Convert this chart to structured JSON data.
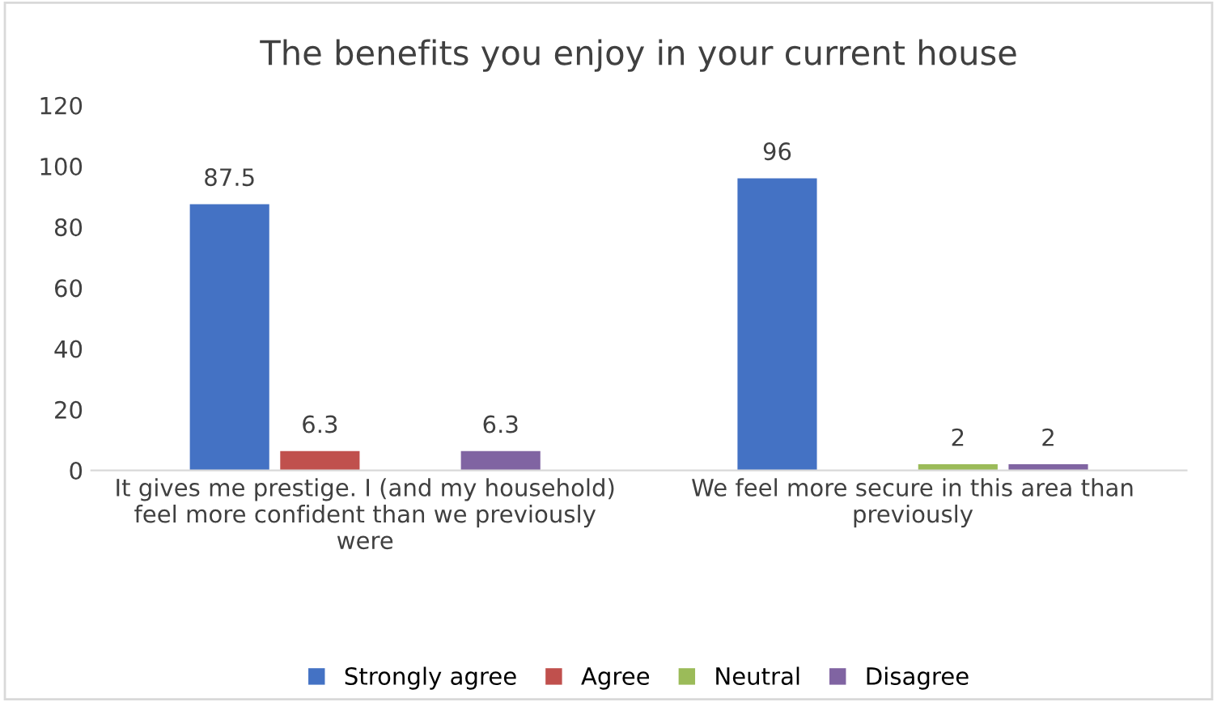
{
  "chart_data": {
    "type": "bar",
    "title": "The benefits you enjoy in your current house",
    "categories": [
      "It gives me prestige. I (and my household) feel more confident than we previously were",
      "We feel more secure in this area than previously"
    ],
    "series": [
      {
        "name": "Strongly agree",
        "color": "#4472c4",
        "values": [
          87.5,
          96
        ],
        "value_labels": [
          "87.5",
          "96"
        ]
      },
      {
        "name": "Agree",
        "color": "#c0504d",
        "values": [
          6.3,
          null
        ],
        "value_labels": [
          "6.3",
          null
        ]
      },
      {
        "name": "Neutral",
        "color": "#9bbb59",
        "values": [
          null,
          2
        ],
        "value_labels": [
          null,
          "2"
        ]
      },
      {
        "name": "Disagree",
        "color": "#8064a2",
        "values": [
          6.3,
          2
        ],
        "value_labels": [
          "6.3",
          "2"
        ]
      }
    ],
    "ylim": [
      0,
      120
    ],
    "yticks": [
      0,
      20,
      40,
      60,
      80,
      100,
      120
    ],
    "legend": "bottom"
  }
}
